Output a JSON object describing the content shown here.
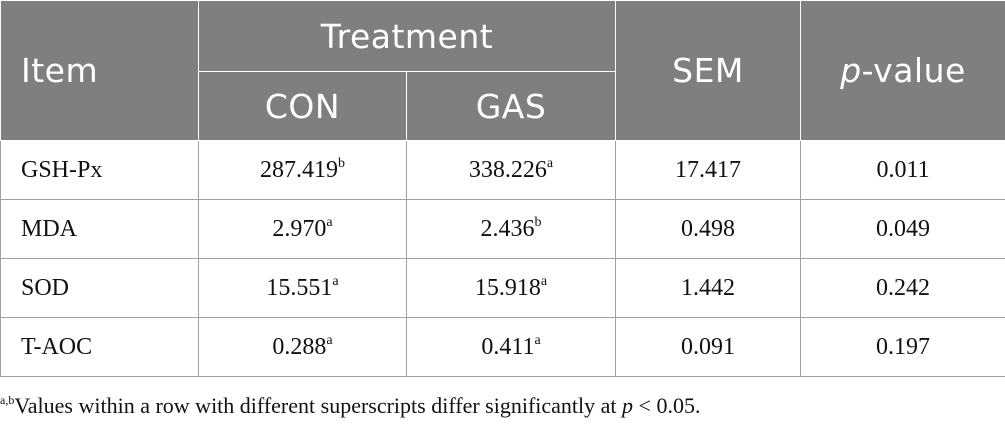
{
  "header": {
    "item": "Item",
    "treatment": "Treatment",
    "sem": "SEM",
    "p_value_p": "p",
    "p_value_rest": "-value",
    "con": "CON",
    "gas": "GAS"
  },
  "rows": [
    {
      "item": "GSH-Px",
      "con": "287.419",
      "con_sup": "b",
      "gas": "338.226",
      "gas_sup": "a",
      "sem": "17.417",
      "p": "0.011"
    },
    {
      "item": "MDA",
      "con": "2.970",
      "con_sup": "a",
      "gas": "2.436",
      "gas_sup": "b",
      "sem": "0.498",
      "p": "0.049"
    },
    {
      "item": "SOD",
      "con": "15.551",
      "con_sup": "a",
      "gas": "15.918",
      "gas_sup": "a",
      "sem": "1.442",
      "p": "0.242"
    },
    {
      "item": "T-AOC",
      "con": "0.288",
      "con_sup": "a",
      "gas": "0.411",
      "gas_sup": "a",
      "sem": "0.091",
      "p": "0.197"
    }
  ],
  "footnote": {
    "sup": "a,b",
    "text": "Values within a row with different superscripts differ significantly at ",
    "p": "p",
    "threshold": " < 0.05."
  },
  "colors": {
    "header_bg": "#7f7f7f",
    "header_text": "#ffffff",
    "grid": "#a0a0a0"
  }
}
